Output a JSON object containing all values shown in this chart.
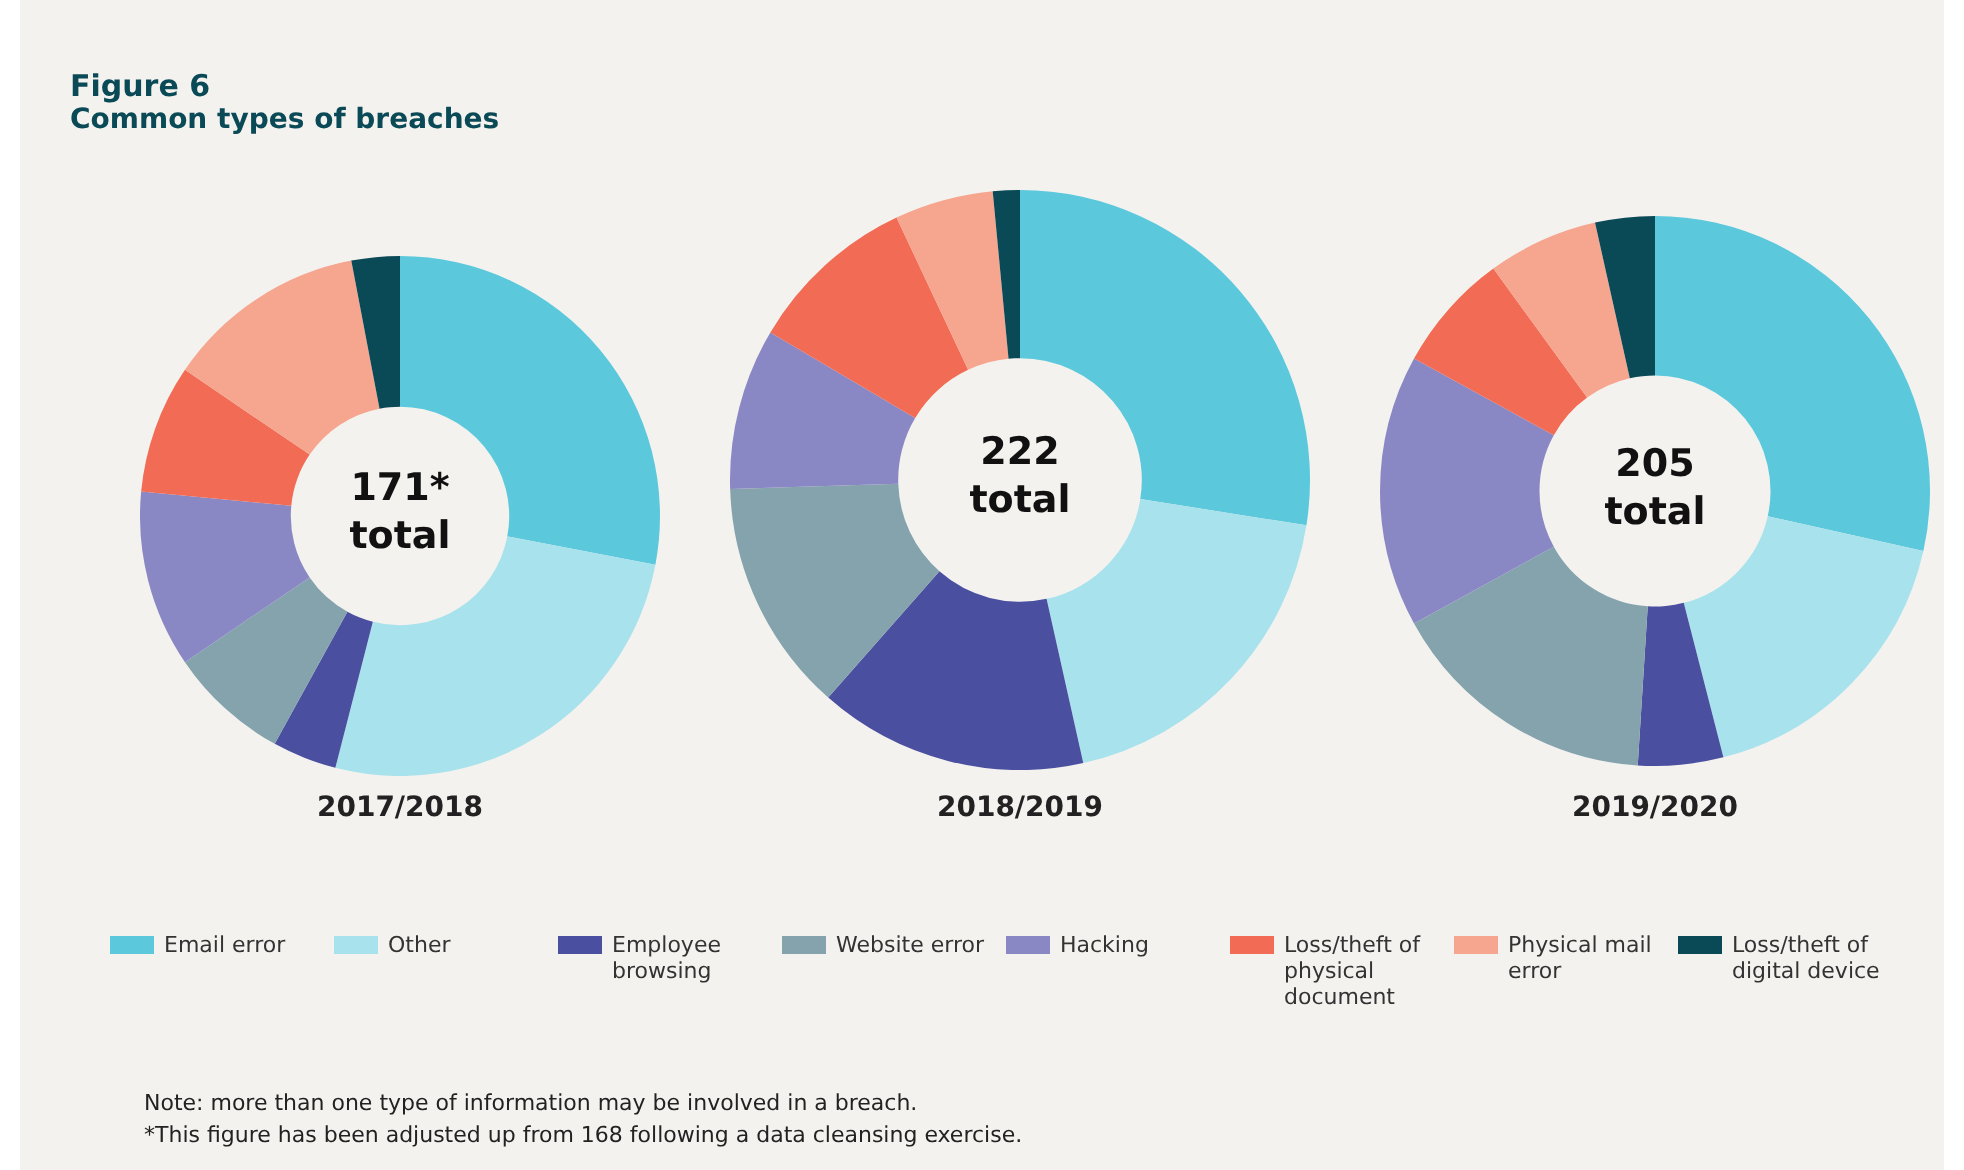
{
  "chart_data": {
    "type": "donut",
    "title": "Figure 6",
    "subtitle": "Common types of breaches",
    "legend": "bottom",
    "annotations": [
      "171* total",
      "222 total",
      "205 total",
      "Note: more than one type of information may be involved in a breach.",
      "*This figure has been adjusted up from 168 following a data cleansing exercise."
    ],
    "categories": [
      "Email error",
      "Other",
      "Employee browsing",
      "Website error",
      "Hacking",
      "Loss/theft of physical document",
      "Physical mail error",
      "Loss/theft of digital device"
    ],
    "colors": [
      "#5bc8dc",
      "#a8e2ec",
      "#4a4fa0",
      "#84a3ad",
      "#8a88c4",
      "#f26b55",
      "#f6a58e",
      "#0a4a57"
    ],
    "series": [
      {
        "name": "2017/2018",
        "values": [
          28,
          26,
          4,
          7.5,
          11,
          8,
          12.5,
          3
        ]
      },
      {
        "name": "2018/2019",
        "values": [
          27.5,
          19,
          15,
          13,
          9,
          9.5,
          5.5,
          1.5
        ]
      },
      {
        "name": "2019/2020",
        "values": [
          28.5,
          17.5,
          5,
          16,
          16,
          7,
          6.5,
          3.5
        ]
      }
    ]
  }
}
